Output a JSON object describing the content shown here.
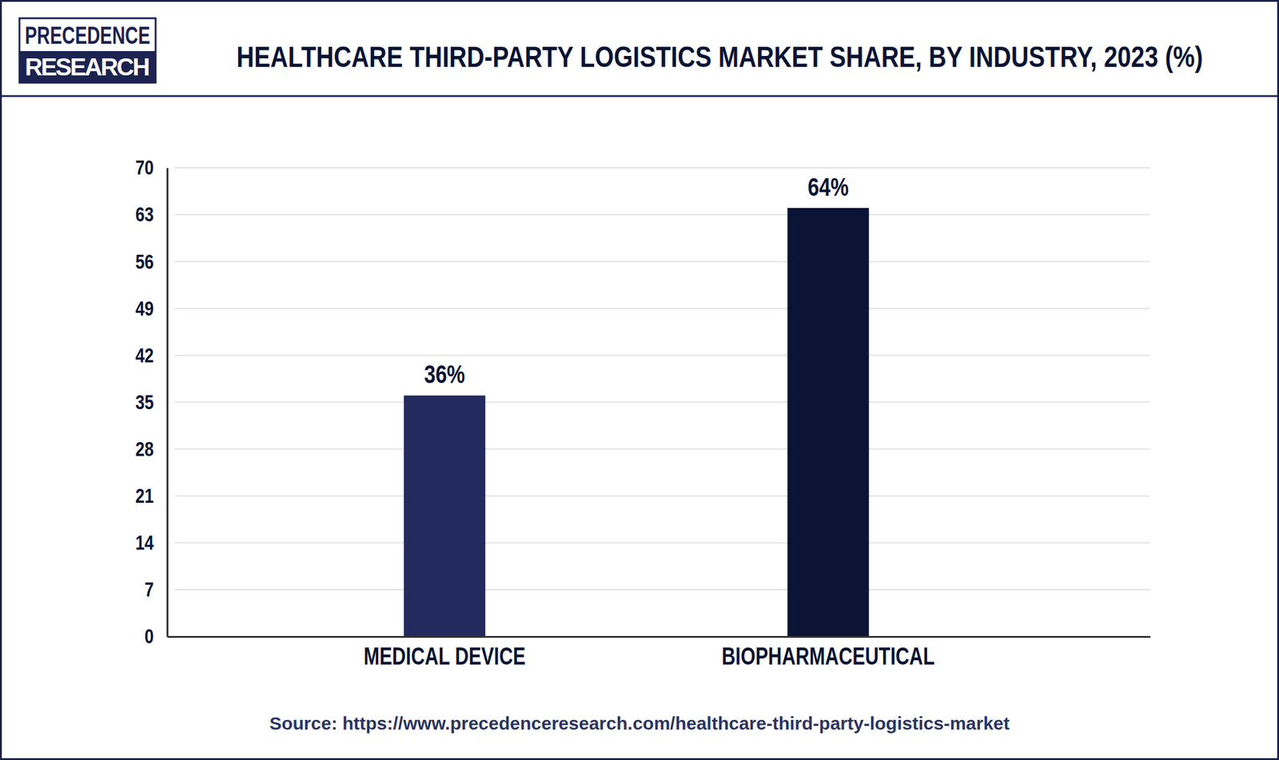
{
  "chart_data": {
    "type": "bar",
    "title": "HEALTHCARE THIRD-PARTY LOGISTICS MARKET SHARE, BY INDUSTRY, 2023 (%)",
    "logo": [
      "PRECEDENCE",
      "RESEARCH"
    ],
    "source": "Source: https://www.precedenceresearch.com/healthcare-third-party-logistics-market",
    "categories": [
      "MEDICAL DEVICE",
      "BIOPHARMACEUTICAL"
    ],
    "values": [
      36,
      64
    ],
    "value_labels": [
      "36%",
      "64%"
    ],
    "colors": [
      "#222a5e",
      "#0b1434"
    ],
    "ylim": [
      0,
      70
    ],
    "yticks": [
      0,
      7,
      14,
      21,
      28,
      35,
      42,
      49,
      56,
      63,
      70
    ],
    "grid": true,
    "data_labels": true
  }
}
